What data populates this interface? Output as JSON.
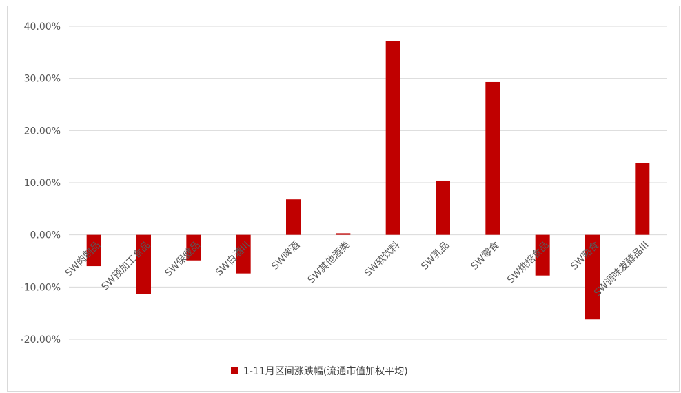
{
  "chart_data": {
    "type": "bar",
    "categories": [
      "SW肉制品",
      "SW预加工食品",
      "SW保健品",
      "SW白酒III",
      "SW啤酒",
      "SW其他酒类",
      "SW软饮料",
      "SW乳品",
      "SW零食",
      "SW烘焙食品",
      "SW熟食",
      "SW调味发酵品III"
    ],
    "series": [
      {
        "name": "1-11月区间涨跌幅(流通市值加权平均)",
        "values": [
          -6.0,
          -11.3,
          -4.9,
          -7.4,
          6.8,
          0.3,
          37.2,
          10.4,
          29.3,
          -7.8,
          -16.2,
          13.8
        ]
      }
    ],
    "ylim": [
      -20,
      40
    ],
    "yticks": [
      "40.00%",
      "30.00%",
      "20.00%",
      "10.00%",
      "0.00%",
      "-10.00%",
      "-20.00%"
    ],
    "ytick_values": [
      40,
      30,
      20,
      10,
      0,
      -10,
      -20
    ],
    "grid": true,
    "legend_position": "bottom",
    "color": "#c00000"
  }
}
